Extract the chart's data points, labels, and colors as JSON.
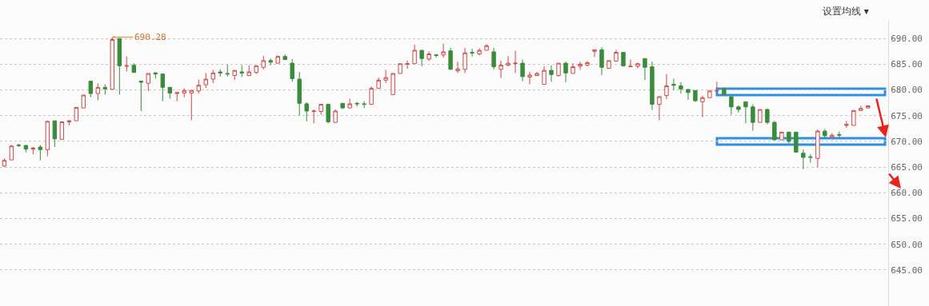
{
  "chart_data": {
    "type": "candlestick",
    "categories": [
      null,
      null,
      null,
      null,
      null,
      null,
      null,
      null,
      null,
      null,
      null,
      null,
      null,
      null,
      null,
      null,
      null,
      null,
      null,
      null,
      null,
      null,
      null,
      null,
      null,
      null,
      null,
      null,
      null,
      null,
      null,
      null,
      null,
      null,
      null,
      null,
      null,
      null,
      null,
      null,
      null,
      null,
      null,
      null,
      null,
      null,
      null,
      null,
      null,
      null,
      null,
      null,
      null,
      null,
      null,
      null,
      null,
      null,
      null,
      null,
      null,
      null,
      null,
      null,
      null,
      null,
      null,
      null,
      null,
      null,
      null,
      null,
      null,
      null,
      null,
      null,
      null,
      null,
      null,
      null,
      null,
      null,
      null,
      null,
      null,
      null,
      null,
      null,
      null,
      null,
      null,
      null,
      null,
      null,
      null,
      null,
      null,
      null,
      null,
      null,
      null,
      null,
      null,
      null,
      null,
      null,
      null,
      null,
      null,
      null,
      null,
      null,
      null,
      null,
      null,
      null,
      null,
      null,
      null,
      null,
      null
    ],
    "ohlc": [
      [
        665.2,
        666.7,
        665.0,
        666.3
      ],
      [
        666.4,
        669.3,
        666.4,
        669.1
      ],
      [
        669.3,
        669.5,
        668.9,
        669.2
      ],
      [
        669.2,
        669.3,
        667.9,
        668.5
      ],
      [
        668.5,
        668.9,
        667.5,
        668.7
      ],
      [
        668.9,
        669.3,
        666.3,
        668.4
      ],
      [
        668.4,
        673.9,
        667.1,
        673.9
      ],
      [
        674.0,
        674.0,
        668.9,
        670.5
      ],
      [
        670.4,
        673.8,
        670.4,
        673.8
      ],
      [
        673.8,
        674.1,
        673.1,
        674.0
      ],
      [
        674.0,
        676.6,
        674.0,
        676.6
      ],
      [
        676.5,
        679.1,
        676.5,
        679.0
      ],
      [
        681.7,
        681.8,
        678.6,
        679.3
      ],
      [
        679.3,
        681.3,
        678.0,
        680.5
      ],
      [
        680.5,
        681.1,
        679.1,
        680.2
      ],
      [
        680.1,
        690.28,
        680.1,
        689.8
      ],
      [
        690.0,
        690.0,
        679.1,
        684.7
      ],
      [
        684.6,
        686.5,
        683.6,
        684.7
      ],
      [
        684.8,
        685.2,
        683.4,
        683.4
      ],
      [
        681.7,
        681.8,
        675.9,
        681.5
      ],
      [
        681.3,
        683.2,
        679.8,
        683.2
      ],
      [
        683.3,
        683.5,
        682.2,
        683.1
      ],
      [
        683.1,
        683.2,
        677.8,
        680.5
      ],
      [
        680.5,
        680.6,
        678.3,
        679.4
      ],
      [
        679.3,
        679.6,
        677.8,
        679.5
      ],
      [
        679.4,
        680.3,
        678.6,
        679.9
      ],
      [
        679.4,
        680.0,
        674.1,
        679.9
      ],
      [
        679.8,
        682.0,
        679.3,
        680.9
      ],
      [
        681.0,
        683.3,
        680.4,
        682.1
      ],
      [
        682.1,
        683.9,
        681.3,
        683.3
      ],
      [
        683.5,
        684.0,
        682.6,
        683.3
      ],
      [
        683.2,
        684.9,
        682.6,
        683.1
      ],
      [
        682.8,
        683.8,
        681.9,
        683.8
      ],
      [
        683.5,
        684.8,
        682.5,
        683.3
      ],
      [
        682.8,
        684.8,
        682.8,
        683.5
      ],
      [
        683.4,
        684.7,
        683.1,
        684.7
      ],
      [
        684.4,
        686.6,
        684.0,
        685.7
      ],
      [
        685.7,
        686.1,
        684.8,
        685.4
      ],
      [
        685.2,
        686.7,
        685.2,
        686.5
      ],
      [
        686.5,
        686.9,
        685.9,
        685.9
      ],
      [
        685.2,
        686.0,
        681.6,
        682.2
      ],
      [
        682.1,
        683.5,
        675.0,
        677.4
      ],
      [
        677.3,
        677.6,
        673.9,
        675.9
      ],
      [
        675.8,
        676.2,
        673.5,
        675.9
      ],
      [
        675.8,
        677.2,
        675.2,
        677.2
      ],
      [
        677.2,
        677.2,
        673.5,
        673.8
      ],
      [
        673.7,
        676.2,
        673.7,
        675.9
      ],
      [
        677.4,
        677.4,
        676.3,
        676.5
      ],
      [
        676.5,
        678.3,
        676.5,
        677.3
      ],
      [
        677.4,
        677.7,
        676.8,
        677.3
      ],
      [
        677.3,
        677.8,
        676.5,
        677.2
      ],
      [
        677.2,
        680.7,
        677.2,
        680.3
      ],
      [
        680.3,
        682.4,
        680.3,
        681.9
      ],
      [
        681.9,
        683.9,
        681.3,
        682.4
      ],
      [
        679.1,
        683.2,
        679.1,
        683.2
      ],
      [
        683.2,
        685.1,
        683.2,
        685.1
      ],
      [
        685.0,
        685.7,
        684.1,
        685.1
      ],
      [
        685.1,
        688.8,
        685.1,
        687.7
      ],
      [
        687.7,
        687.7,
        684.6,
        686.1
      ],
      [
        686.0,
        687.5,
        685.6,
        687.0
      ],
      [
        686.8,
        687.0,
        686.3,
        686.7
      ],
      [
        686.8,
        689.0,
        686.3,
        687.4
      ],
      [
        687.6,
        688.2,
        684.0,
        684.0
      ],
      [
        683.7,
        685.5,
        683.3,
        684.1
      ],
      [
        684.0,
        688.2,
        683.3,
        687.2
      ],
      [
        687.3,
        688.0,
        686.5,
        687.2
      ],
      [
        687.0,
        688.1,
        686.7,
        687.7
      ],
      [
        687.7,
        688.9,
        687.7,
        688.6
      ],
      [
        687.4,
        688.2,
        684.0,
        684.5
      ],
      [
        684.0,
        685.7,
        682.3,
        684.8
      ],
      [
        684.8,
        686.6,
        684.6,
        685.2
      ],
      [
        685.1,
        687.6,
        683.3,
        685.2
      ],
      [
        685.2,
        685.9,
        681.7,
        682.6
      ],
      [
        682.5,
        683.5,
        681.1,
        682.9
      ],
      [
        682.8,
        683.5,
        682.8,
        683.2
      ],
      [
        681.1,
        684.6,
        681.1,
        683.8
      ],
      [
        683.8,
        684.8,
        681.6,
        683.0
      ],
      [
        682.8,
        685.2,
        682.6,
        685.2
      ],
      [
        685.2,
        685.5,
        681.5,
        683.3
      ],
      [
        683.2,
        685.2,
        683.2,
        684.5
      ],
      [
        684.6,
        685.5,
        683.9,
        685.0
      ],
      [
        684.8,
        685.6,
        684.6,
        685.3
      ],
      [
        687.5,
        687.8,
        686.4,
        687.8
      ],
      [
        687.8,
        688.3,
        682.9,
        684.4
      ],
      [
        684.2,
        685.7,
        684.2,
        685.7
      ],
      [
        685.6,
        687.8,
        685.6,
        687.3
      ],
      [
        687.3,
        687.3,
        684.5,
        684.7
      ],
      [
        684.5,
        685.9,
        684.5,
        684.6
      ],
      [
        684.6,
        685.3,
        684.2,
        685.1
      ],
      [
        686.1,
        686.1,
        681.9,
        684.4
      ],
      [
        684.5,
        685.5,
        676.1,
        677.2
      ],
      [
        677.2,
        678.7,
        674.1,
        678.7
      ],
      [
        678.9,
        683.1,
        678.2,
        680.8
      ],
      [
        681.1,
        682.2,
        680.0,
        680.9
      ],
      [
        680.8,
        681.5,
        679.3,
        680.2
      ],
      [
        680.1,
        680.1,
        678.1,
        679.5
      ],
      [
        679.9,
        679.9,
        677.7,
        677.9
      ],
      [
        677.7,
        678.9,
        674.7,
        678.5
      ],
      [
        678.5,
        680.0,
        678.5,
        679.8
      ],
      [
        679.8,
        681.6,
        679.8,
        679.9
      ],
      [
        680.2,
        680.5,
        679.0,
        679.1
      ],
      [
        678.7,
        678.7,
        675.2,
        676.7
      ],
      [
        676.7,
        677.0,
        675.6,
        676.2
      ],
      [
        677.7,
        677.7,
        673.5,
        676.7
      ],
      [
        676.7,
        677.2,
        672.1,
        673.7
      ],
      [
        673.7,
        676.2,
        673.7,
        676.2
      ],
      [
        676.2,
        676.4,
        673.3,
        673.7
      ],
      [
        673.7,
        674.0,
        670.3,
        670.3
      ],
      [
        670.3,
        671.8,
        670.3,
        671.8
      ],
      [
        671.8,
        671.8,
        669.6,
        670.0
      ],
      [
        671.8,
        671.8,
        667.9,
        667.9
      ],
      [
        667.7,
        668.4,
        664.6,
        666.9
      ],
      [
        667.0,
        667.5,
        665.9,
        666.9
      ],
      [
        666.7,
        672.3,
        665.0,
        672.0
      ],
      [
        672.0,
        672.4,
        670.6,
        671.1
      ],
      [
        670.8,
        671.6,
        670.5,
        671.2
      ],
      [
        671.3,
        671.9,
        670.7,
        671.2
      ],
      [
        673.1,
        674.0,
        672.6,
        673.3
      ],
      [
        673.1,
        676.0,
        673.1,
        676.0
      ],
      [
        676.0,
        676.9,
        676.0,
        676.4
      ],
      [
        676.5,
        677.0,
        676.5,
        676.9
      ]
    ],
    "colors": [
      "#d04848",
      "#d04848",
      "#3a8c3a",
      "#3a8c3a",
      "#d04848",
      "#3a8c3a",
      "#d04848",
      "#3a8c3a",
      "#d04848",
      "#d04848",
      "#d04848",
      "#d04848",
      "#3a8c3a",
      "#d04848",
      "#3a8c3a",
      "#d04848",
      "#3a8c3a",
      "#d04848",
      "#3a8c3a",
      "#3a8c3a",
      "#d04848",
      "#3a8c3a",
      "#3a8c3a",
      "#3a8c3a",
      "#d04848",
      "#d04848",
      "#d04848",
      "#d04848",
      "#d04848",
      "#d04848",
      "#3a8c3a",
      "#3a8c3a",
      "#d04848",
      "#3a8c3a",
      "#d04848",
      "#d04848",
      "#d04848",
      "#3a8c3a",
      "#d04848",
      "#3a8c3a",
      "#3a8c3a",
      "#3a8c3a",
      "#3a8c3a",
      "#d04848",
      "#d04848",
      "#3a8c3a",
      "#d04848",
      "#3a8c3a",
      "#d04848",
      "#3a8c3a",
      "#3a8c3a",
      "#d04848",
      "#d04848",
      "#d04848",
      "#d04848",
      "#d04848",
      "#d04848",
      "#d04848",
      "#3a8c3a",
      "#d04848",
      "#3a8c3a",
      "#d04848",
      "#3a8c3a",
      "#d04848",
      "#d04848",
      "#3a8c3a",
      "#d04848",
      "#d04848",
      "#3a8c3a",
      "#d04848",
      "#d04848",
      "#d04848",
      "#3a8c3a",
      "#d04848",
      "#d04848",
      "#d04848",
      "#3a8c3a",
      "#d04848",
      "#3a8c3a",
      "#d04848",
      "#d04848",
      "#d04848",
      "#d04848",
      "#3a8c3a",
      "#d04848",
      "#d04848",
      "#3a8c3a",
      "#d04848",
      "#d04848",
      "#3a8c3a",
      "#3a8c3a",
      "#d04848",
      "#d04848",
      "#3a8c3a",
      "#3a8c3a",
      "#3a8c3a",
      "#3a8c3a",
      "#d04848",
      "#d04848",
      "#d04848",
      "#3a8c3a",
      "#3a8c3a",
      "#3a8c3a",
      "#3a8c3a",
      "#3a8c3a",
      "#d04848",
      "#3a8c3a",
      "#3a8c3a",
      "#d04848",
      "#3a8c3a",
      "#3a8c3a",
      "#3a8c3a",
      "#3a8c3a",
      "#d04848",
      "#3a8c3a",
      "#d04848",
      "#3a8c3a",
      "#d04848",
      "#d04848",
      "#d04848",
      "#d04848"
    ],
    "ylim": [
      638,
      693.6
    ],
    "yticks": [
      {
        "value": 690,
        "label": "690.00"
      },
      {
        "value": 685,
        "label": "685.00"
      },
      {
        "value": 680,
        "label": "680.00"
      },
      {
        "value": 675,
        "label": "675.00"
      },
      {
        "value": 670,
        "label": "670.00"
      },
      {
        "value": 665,
        "label": "665.00"
      },
      {
        "value": 660,
        "label": "660.00"
      },
      {
        "value": 655,
        "label": "655.00"
      },
      {
        "value": 650,
        "label": "650.00"
      },
      {
        "value": 645,
        "label": "645.00"
      }
    ],
    "grid": "y",
    "tick_labels": "y",
    "annotations": [
      "设置均线 ▾",
      "690.28"
    ]
  }
}
